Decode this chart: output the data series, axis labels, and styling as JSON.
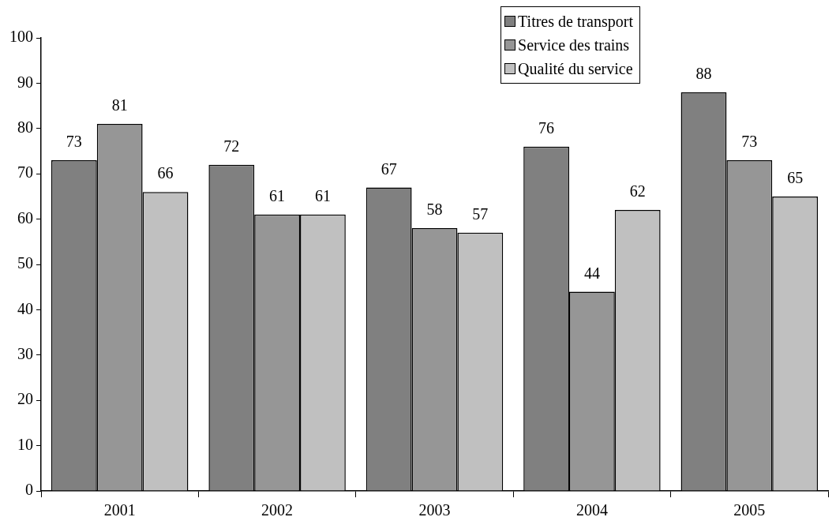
{
  "chart_data": {
    "type": "bar",
    "categories": [
      "2001",
      "2002",
      "2003",
      "2004",
      "2005"
    ],
    "series": [
      {
        "name": "Titres de transport",
        "color": "#808080",
        "values": [
          73,
          72,
          67,
          76,
          88
        ]
      },
      {
        "name": "Service des trains",
        "color": "#969696",
        "values": [
          81,
          61,
          58,
          44,
          73
        ]
      },
      {
        "name": "Qualité du service",
        "color": "#c0c0c0",
        "values": [
          66,
          61,
          57,
          62,
          65
        ]
      }
    ],
    "ylim": [
      0,
      100
    ],
    "yticks": [
      0,
      10,
      20,
      30,
      40,
      50,
      60,
      70,
      80,
      90,
      100
    ],
    "grid": false,
    "legend": "top right",
    "data_labels": true
  }
}
